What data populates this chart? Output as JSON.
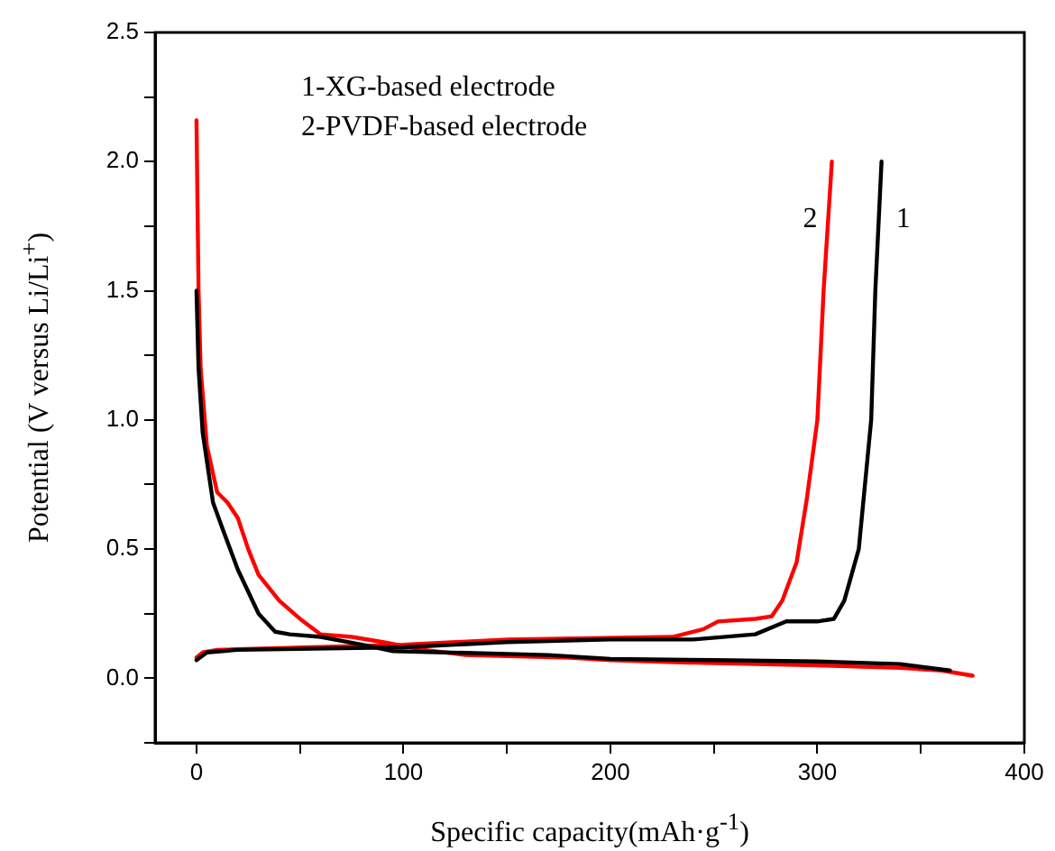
{
  "chart_data": {
    "type": "line",
    "xlabel": "Specific capacity(mAh·g$^{-1}$)",
    "ylabel": "Potential (V versus Li/Li$^{+}$)",
    "xlim": [
      -20,
      400
    ],
    "xticks": [
      0,
      {
        "value": 50,
        "label": null
      },
      100,
      {
        "value": 150,
        "label": null
      },
      200,
      {
        "value": 250,
        "label": null
      },
      300,
      {
        "value": 350,
        "label": null
      },
      400
    ],
    "ylim": [
      -0.25,
      2.5
    ],
    "yticks": [
      {
        "value": -0.25,
        "label": null
      },
      {
        "value": 0,
        "label": "0.0"
      },
      {
        "value": 0.25,
        "label": null
      },
      0.5,
      {
        "value": 0.75,
        "label": null
      },
      {
        "value": 1,
        "label": "1.0"
      },
      {
        "value": 1.25,
        "label": null
      },
      1.5,
      {
        "value": 1.75,
        "label": null
      },
      {
        "value": 2,
        "label": "2.0"
      },
      {
        "value": 2.25,
        "label": null
      },
      2.5
    ],
    "grid": false,
    "legend": false,
    "marker": "none",
    "line_style": "solid",
    "series": [
      {
        "color": "#000000",
        "x": [
          0,
          1,
          3,
          8,
          13,
          20,
          30,
          38,
          45,
          60,
          80,
          95,
          120,
          170,
          200,
          250,
          300,
          340,
          364
        ],
        "values": [
          1.5,
          1.2,
          0.95,
          0.68,
          0.57,
          0.42,
          0.25,
          0.18,
          0.17,
          0.16,
          0.13,
          0.105,
          0.1,
          0.09,
          0.075,
          0.07,
          0.065,
          0.055,
          0.03
        ]
      },
      {
        "name": "1",
        "color": "#000000",
        "x": [
          0,
          5,
          20,
          100,
          150,
          200,
          240,
          270,
          285,
          300,
          308,
          313,
          320,
          326,
          328,
          331
        ],
        "values": [
          0.07,
          0.1,
          0.11,
          0.12,
          0.14,
          0.15,
          0.15,
          0.17,
          0.22,
          0.22,
          0.23,
          0.3,
          0.5,
          1.0,
          1.5,
          2.0
        ]
      },
      {
        "color": "#ff0000",
        "x": [
          0,
          1,
          2,
          5,
          10,
          15,
          20,
          25,
          30,
          40,
          50,
          60,
          75,
          90,
          110,
          130,
          180,
          200,
          240,
          300,
          340,
          360,
          375
        ],
        "values": [
          2.16,
          1.5,
          1.2,
          0.9,
          0.72,
          0.68,
          0.62,
          0.5,
          0.4,
          0.3,
          0.23,
          0.17,
          0.16,
          0.14,
          0.11,
          0.09,
          0.08,
          0.07,
          0.06,
          0.05,
          0.04,
          0.03,
          0.01
        ]
      },
      {
        "name": "2",
        "color": "#ff0000",
        "x": [
          0,
          3,
          10,
          100,
          150,
          230,
          245,
          252,
          270,
          278,
          283,
          290,
          295,
          300,
          303,
          307
        ],
        "values": [
          0.08,
          0.1,
          0.11,
          0.13,
          0.15,
          0.16,
          0.19,
          0.22,
          0.23,
          0.24,
          0.3,
          0.45,
          0.7,
          1.0,
          1.5,
          2.0
        ]
      }
    ],
    "annotations": [
      "1-XG-based electrode",
      "2-PVDF-based electrode"
    ]
  }
}
